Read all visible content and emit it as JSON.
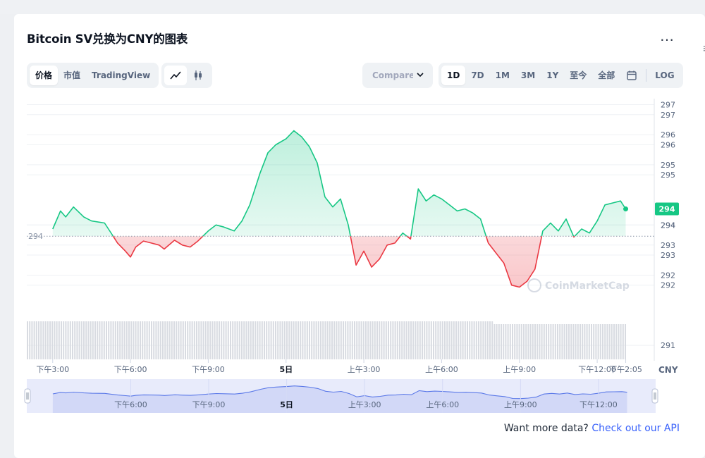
{
  "title": "Bitcoin SV兑换为CNY的图表",
  "more_icon": "…",
  "view_tabs": [
    {
      "label": "价格",
      "active": true
    },
    {
      "label": "市值",
      "active": false
    },
    {
      "label": "TradingView",
      "active": false
    }
  ],
  "chart_style_icons": [
    "line-chart-icon",
    "candlestick-icon"
  ],
  "compare": {
    "label": "Compare with"
  },
  "time_ranges": [
    {
      "label": "1D",
      "active": true
    },
    {
      "label": "7D",
      "active": false
    },
    {
      "label": "1M",
      "active": false
    },
    {
      "label": "3M",
      "active": false
    },
    {
      "label": "1Y",
      "active": false
    },
    {
      "label": "至今",
      "active": false
    },
    {
      "label": "全部",
      "active": false
    }
  ],
  "calendar_icon": "calendar-icon",
  "log_label": "LOG",
  "currency": "CNY",
  "current_price_label": "294",
  "watermark": "CoinMarketCap",
  "api": {
    "text": "Want more data?",
    "link": "Check out our API"
  },
  "colors": {
    "up": "#16c784",
    "down": "#ea3943",
    "accent": "#3861fb",
    "text": "#0d1421",
    "muted": "#58667e"
  },
  "chart_data": {
    "type": "line",
    "baseline_label": "294",
    "baseline": 293.72,
    "y_ticks": [
      "297",
      "297",
      "296",
      "296",
      "295",
      "295",
      "294",
      "294",
      "293",
      "293",
      "292",
      "292",
      "291"
    ],
    "y_tick_values": [
      297.0,
      296.75,
      296.25,
      296.0,
      295.5,
      295.25,
      294.0,
      294.0,
      293.5,
      293.25,
      292.75,
      292.5,
      291.0
    ],
    "ylim": [
      290.65,
      297.15
    ],
    "x_ticks": [
      "下午3:00",
      "下午6:00",
      "下午9:00",
      "5日",
      "上午3:00",
      "上午6:00",
      "上午9:00",
      "下午12:00",
      "下午2:05"
    ],
    "navigator_ticks": [
      "下午6:00",
      "下午9:00",
      "5日",
      "上午3:00",
      "上午6:00",
      "上午9:00",
      "下午12:00"
    ],
    "x_range_hours": [
      -1,
      23.2
    ],
    "price_hours": [
      0,
      0.3,
      0.5,
      0.8,
      1.2,
      1.5,
      2,
      2.3,
      2.5,
      2.8,
      3.0,
      3.2,
      3.5,
      3.8,
      4.1,
      4.3,
      4.7,
      5,
      5.3,
      5.6,
      6,
      6.3,
      6.6,
      7,
      7.3,
      7.6,
      8,
      8.3,
      8.6,
      9,
      9.3,
      9.6,
      9.9,
      10.2,
      10.5,
      10.8,
      11.1,
      11.4,
      11.7,
      12,
      12.3,
      12.6,
      12.9,
      13.2,
      13.5,
      13.8,
      14.1,
      14.4,
      14.7,
      15,
      15.3,
      15.6,
      15.9,
      16.2,
      16.5,
      16.8,
      17.1,
      17.4,
      17.7,
      18,
      18.3,
      18.6,
      18.9,
      19.2,
      19.5,
      19.8,
      20.1,
      20.4,
      20.7,
      21,
      21.3,
      21.6,
      21.9,
      22.1
    ],
    "price_values": [
      293.9,
      294.35,
      294.2,
      294.45,
      294.2,
      294.1,
      294.05,
      293.75,
      293.55,
      293.35,
      293.2,
      293.45,
      293.6,
      293.55,
      293.5,
      293.4,
      293.62,
      293.5,
      293.45,
      293.6,
      293.85,
      294.0,
      293.95,
      293.85,
      294.1,
      294.5,
      295.3,
      295.8,
      296.0,
      296.15,
      296.35,
      296.2,
      295.95,
      295.55,
      294.7,
      294.45,
      294.65,
      294.0,
      293.0,
      293.35,
      292.95,
      293.15,
      293.5,
      293.55,
      293.8,
      293.65,
      294.9,
      294.6,
      294.75,
      294.65,
      294.5,
      294.35,
      294.4,
      294.3,
      294.15,
      293.55,
      293.3,
      293.05,
      292.5,
      292.45,
      292.6,
      292.9,
      293.85,
      294.05,
      293.85,
      294.15,
      293.7,
      293.9,
      293.8,
      294.1,
      294.5,
      294.55,
      294.6,
      294.4
    ],
    "volume": "constant",
    "grid": true,
    "legend": "none"
  }
}
